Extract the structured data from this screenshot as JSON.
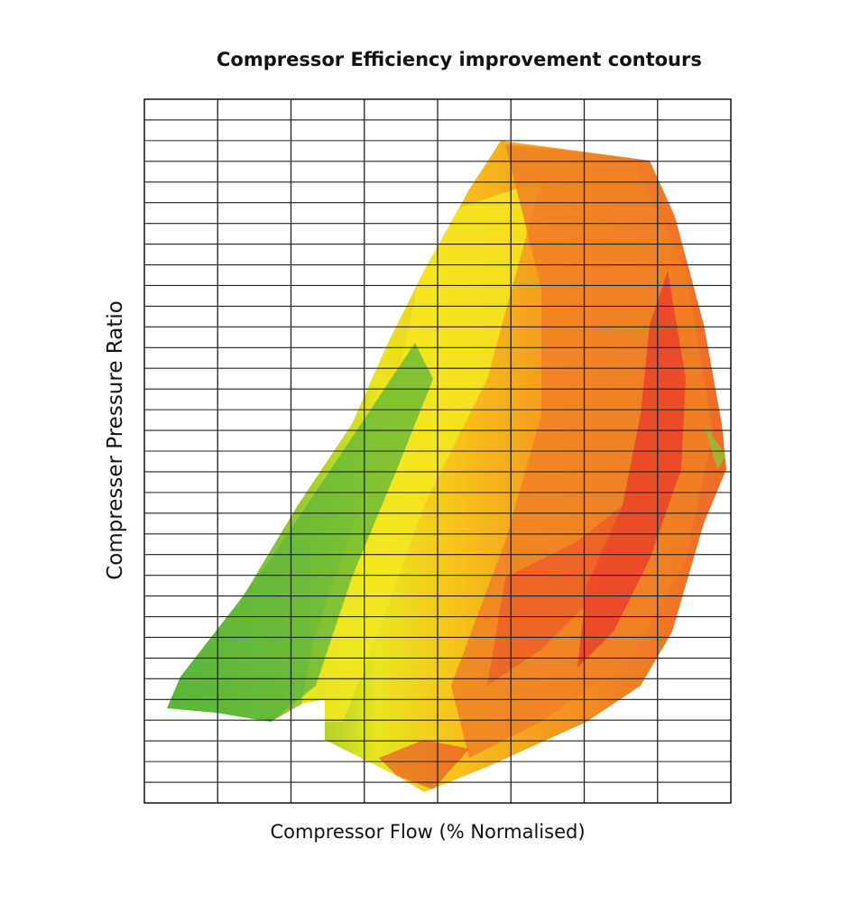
{
  "chart_data": {
    "type": "heatmap",
    "title": "Compressor Efficiency improvement contours",
    "xlabel": "Compressor Flow (% Normalised)",
    "ylabel": "Compresser Pressure Ratio",
    "grid": true,
    "legend": "none",
    "colors": {
      "low": "#4fb33a",
      "mid_low": "#a6cf2f",
      "mid": "#f2ea1f",
      "mid_high": "#f7a918",
      "high": "#f08124",
      "peak": "#e8392a",
      "grid": "#222222"
    },
    "contour_levels": [
      "low",
      "mid_low",
      "mid",
      "mid_high",
      "high",
      "peak"
    ]
  }
}
